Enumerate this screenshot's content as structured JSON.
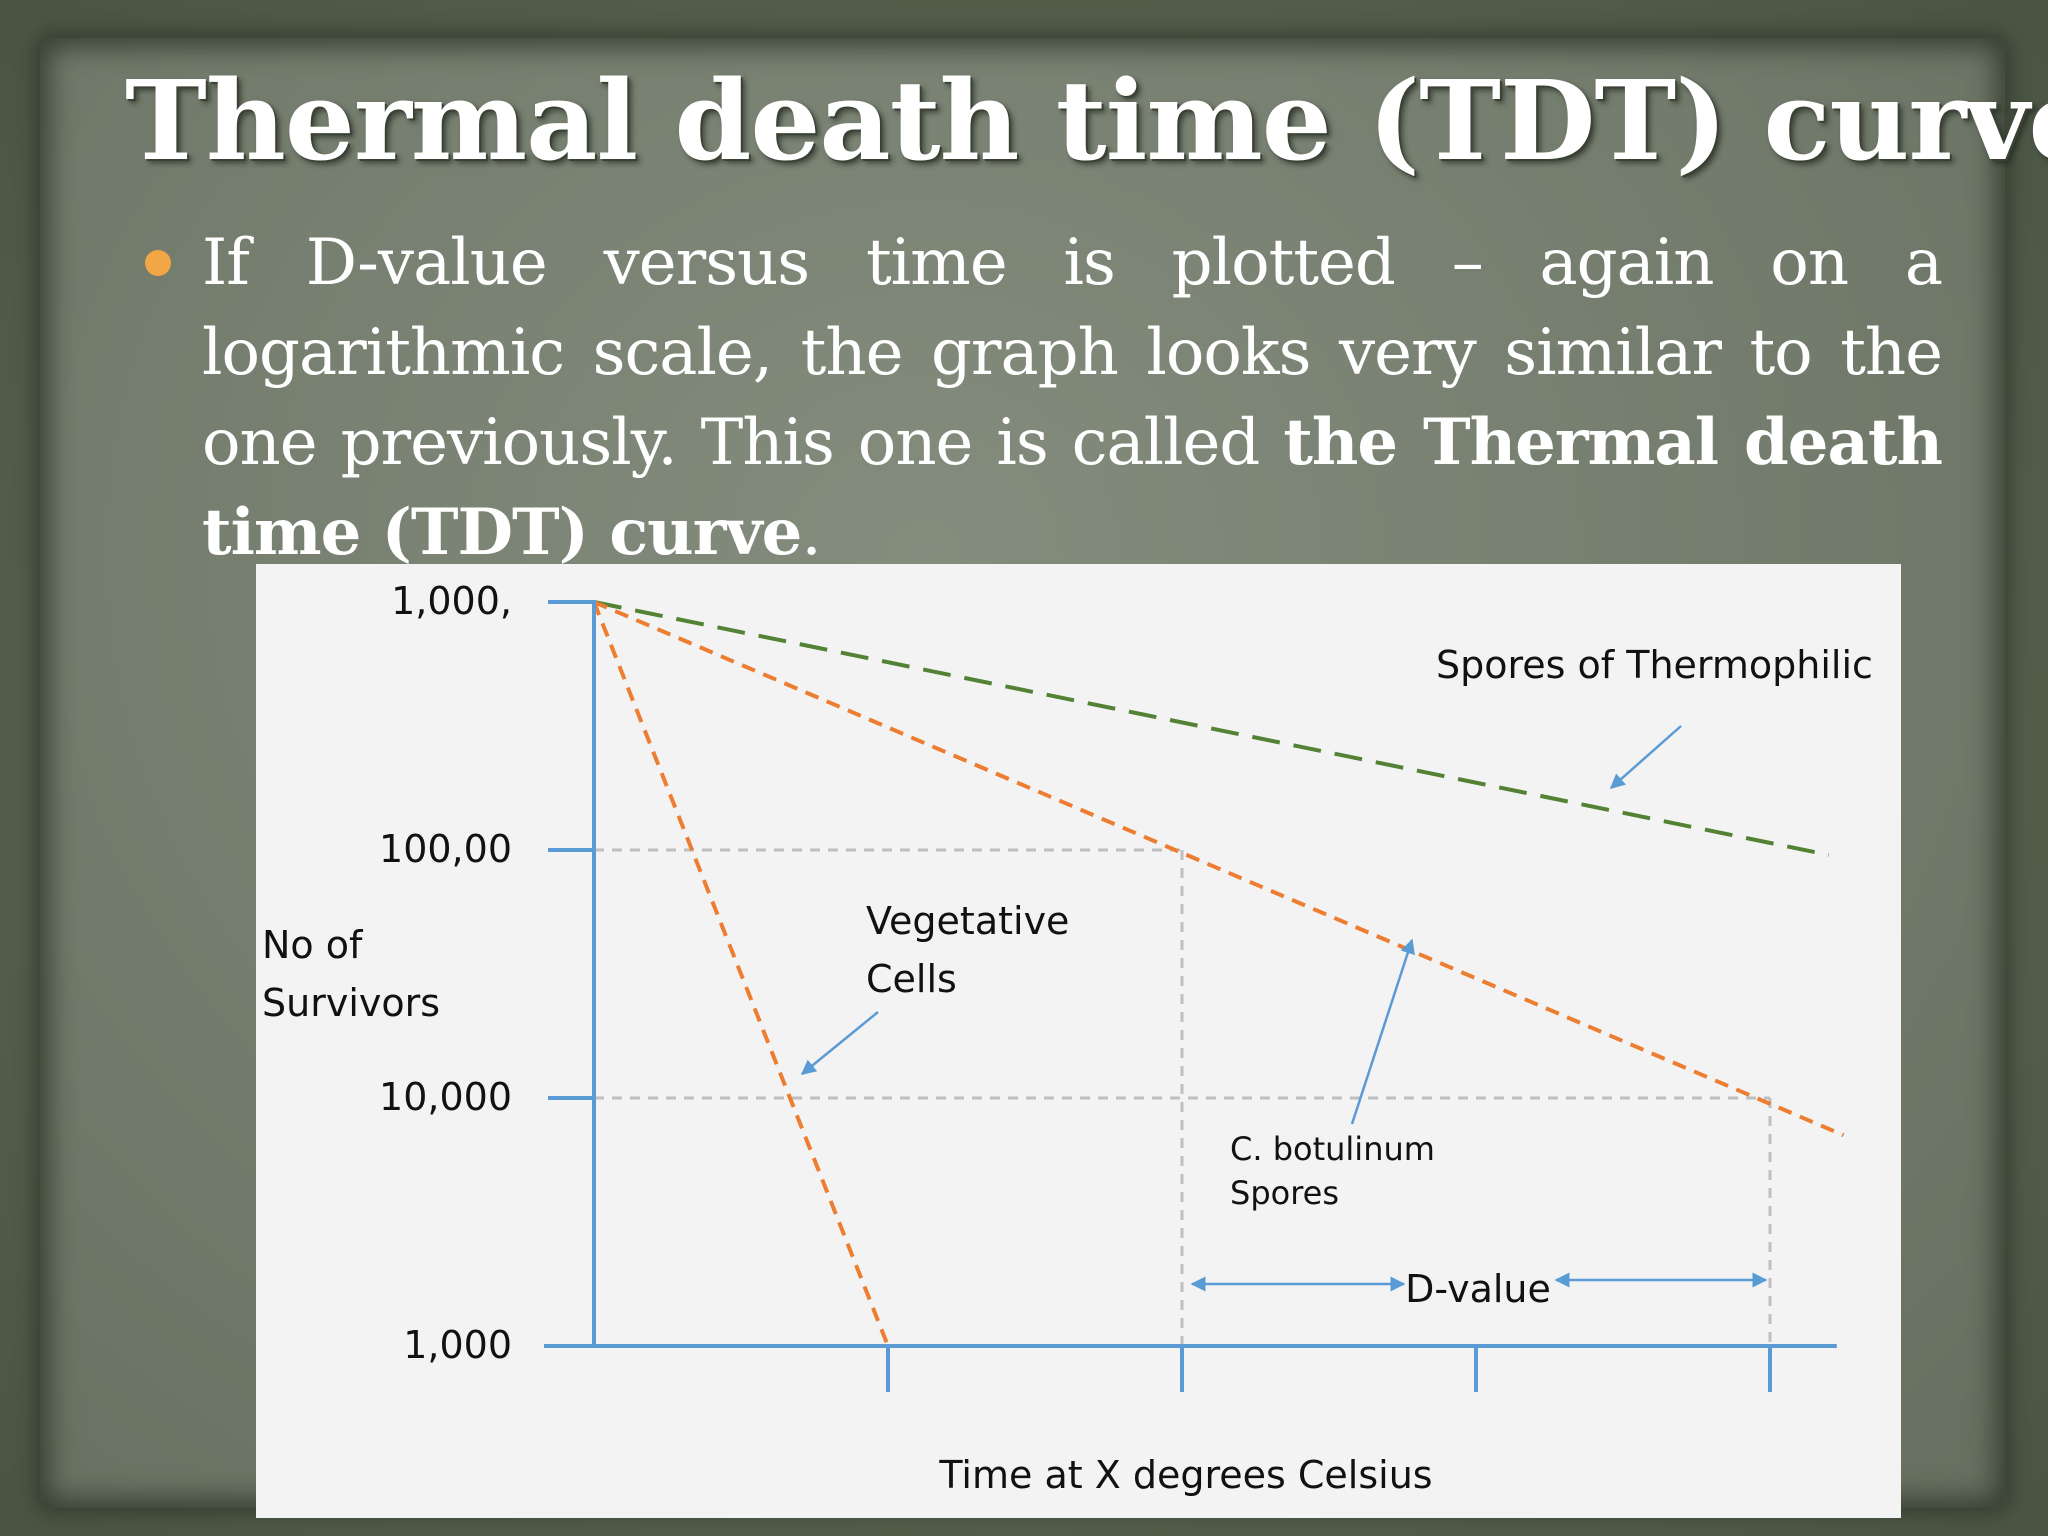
{
  "slide": {
    "title": "Thermal death time (TDT) curve",
    "bullet": {
      "part1": "If D-value versus time is plotted – again on a logarithmic scale, the graph looks very similar to the one previously. This one is called ",
      "bold": "the Thermal death time (TDT) curve",
      "end": "."
    }
  },
  "colors": {
    "axis": "#5b9bd5",
    "orange": "#ed7d31",
    "green": "#548235",
    "gridline": "#bfbfbf",
    "bullet": "#f2a645"
  },
  "chart_data": {
    "type": "line",
    "xlabel": "Time at X degrees Celsius",
    "ylabel": [
      "No of",
      "Survivors"
    ],
    "y_scale": "log",
    "y_ticks": [
      {
        "label": "1,000,",
        "level": 3
      },
      {
        "label": "100,00",
        "level": 2
      },
      {
        "label": "10,000",
        "level": 1
      },
      {
        "label": "1,000",
        "level": 0
      }
    ],
    "x_ticks": [
      1,
      2,
      3,
      4
    ],
    "xlim": [
      0,
      4.2
    ],
    "ylim": [
      0,
      3
    ],
    "grid": false,
    "series": [
      {
        "name": "Spores of Thermophilic",
        "color": "#548235",
        "dash": "long",
        "points": [
          [
            0,
            3
          ],
          [
            4.2,
            1.98
          ]
        ]
      },
      {
        "name": "C. botulinum Spores",
        "color": "#ed7d31",
        "dash": "short",
        "points": [
          [
            0,
            3
          ],
          [
            4.25,
            0.85
          ]
        ]
      },
      {
        "name": "Vegetative Cells",
        "color": "#ed7d31",
        "dash": "short",
        "points": [
          [
            0,
            3
          ],
          [
            1,
            0
          ]
        ]
      }
    ],
    "annotations": {
      "thermophilic": "Spores of Thermophilic",
      "vegetative": [
        "Vegetative",
        "Cells"
      ],
      "botulinum": [
        "C. botulinum",
        "Spores"
      ],
      "dvalue": "D-value"
    }
  }
}
